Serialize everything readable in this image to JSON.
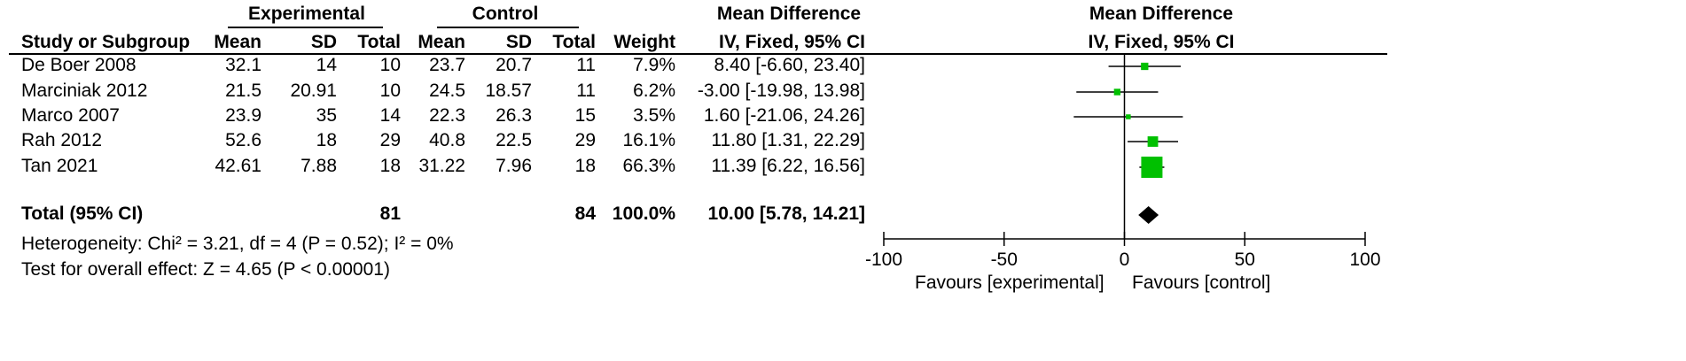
{
  "header": {
    "group_experimental": "Experimental",
    "group_control": "Control",
    "group_md": "Mean Difference",
    "plot_md": "Mean Difference",
    "study_col": "Study or Subgroup",
    "mean_exp": "Mean",
    "sd_exp": "SD",
    "total_exp": "Total",
    "mean_ctl": "Mean",
    "sd_ctl": "SD",
    "total_ctl": "Total",
    "weight": "Weight",
    "md_method": "IV, Fixed, 95% CI",
    "plot_method": "IV, Fixed, 95% CI"
  },
  "studies": [
    {
      "name": "De Boer 2008",
      "mean_exp": "32.1",
      "sd_exp": "14",
      "total_exp": "10",
      "mean_ctl": "23.7",
      "sd_ctl": "20.7",
      "total_ctl": "11",
      "weight": "7.9%",
      "ci_text": "8.40 [-6.60, 23.40]"
    },
    {
      "name": "Marciniak 2012",
      "mean_exp": "21.5",
      "sd_exp": "20.91",
      "total_exp": "10",
      "mean_ctl": "24.5",
      "sd_ctl": "18.57",
      "total_ctl": "11",
      "weight": "6.2%",
      "ci_text": "-3.00 [-19.98, 13.98]"
    },
    {
      "name": "Marco 2007",
      "mean_exp": "23.9",
      "sd_exp": "35",
      "total_exp": "14",
      "mean_ctl": "22.3",
      "sd_ctl": "26.3",
      "total_ctl": "15",
      "weight": "3.5%",
      "ci_text": "1.60 [-21.06, 24.26]"
    },
    {
      "name": "Rah 2012",
      "mean_exp": "52.6",
      "sd_exp": "18",
      "total_exp": "29",
      "mean_ctl": "40.8",
      "sd_ctl": "22.5",
      "total_ctl": "29",
      "weight": "16.1%",
      "ci_text": "11.80 [1.31, 22.29]"
    },
    {
      "name": "Tan 2021",
      "mean_exp": "42.61",
      "sd_exp": "7.88",
      "total_exp": "18",
      "mean_ctl": "31.22",
      "sd_ctl": "7.96",
      "total_ctl": "18",
      "weight": "66.3%",
      "ci_text": "11.39 [6.22, 16.56]"
    }
  ],
  "total": {
    "label": "Total (95% CI)",
    "total_exp": "81",
    "total_ctl": "84",
    "weight": "100.0%",
    "ci_text": "10.00 [5.78, 14.21]"
  },
  "heterogeneity": "Heterogeneity: Chi² = 3.21, df = 4 (P = 0.52); I² = 0%",
  "overall_effect": "Test for overall effect: Z = 4.65 (P < 0.00001)",
  "chart_data": {
    "type": "forest",
    "x_axis": {
      "range": [
        -100,
        100
      ],
      "ticks": [
        -100,
        -50,
        0,
        50,
        100
      ],
      "tick_labels": [
        "-100",
        "-50",
        "0",
        "50",
        "100"
      ],
      "left_label": "Favours [experimental]",
      "right_label": "Favours [control]"
    },
    "series": [
      {
        "name": "De Boer 2008",
        "md": 8.4,
        "lower": -6.6,
        "upper": 23.4,
        "weight": 7.9
      },
      {
        "name": "Marciniak 2012",
        "md": -3.0,
        "lower": -19.98,
        "upper": 13.98,
        "weight": 6.2
      },
      {
        "name": "Marco 2007",
        "md": 1.6,
        "lower": -21.06,
        "upper": 24.26,
        "weight": 3.5
      },
      {
        "name": "Rah 2012",
        "md": 11.8,
        "lower": 1.31,
        "upper": 22.29,
        "weight": 16.1
      },
      {
        "name": "Tan 2021",
        "md": 11.39,
        "lower": 6.22,
        "upper": 16.56,
        "weight": 66.3
      }
    ],
    "pooled": {
      "md": 10.0,
      "lower": 5.78,
      "upper": 14.21
    },
    "colors": {
      "marker": "#00c000",
      "line": "#000000",
      "diamond": "#000000"
    }
  }
}
